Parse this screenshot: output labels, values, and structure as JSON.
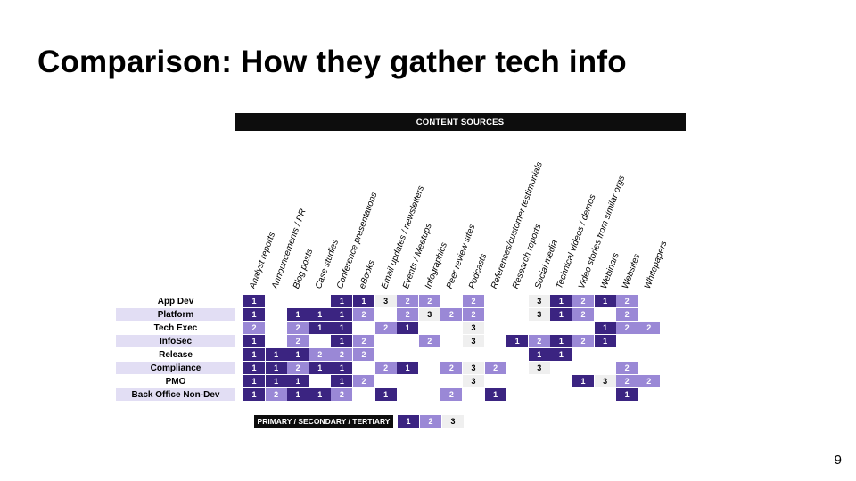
{
  "title": "Comparison: How they gather tech info",
  "page_number": "9",
  "figure": {
    "header": "CONTENT SOURCES",
    "columns": [
      "Analyst reports",
      "Announcements / PR",
      "Blog posts",
      "Case studies",
      "Conference presentations",
      "eBooks",
      "Email updates / newsletters",
      "Events / Meetups",
      "Infographics",
      "Peer review sites",
      "Podcasts",
      "References/customer testimonials",
      "Research reports",
      "Social media",
      "Technical videos / demos",
      "Video stories from similar orgs",
      "Webinars",
      "Websites",
      "Whitepapers"
    ],
    "rows": [
      {
        "label": "App Dev",
        "cells": [
          "1",
          "",
          "",
          "",
          "1",
          "1",
          "3",
          "2",
          "2",
          "",
          "2",
          "",
          "",
          "3",
          "1",
          "2",
          "1",
          "2",
          ""
        ]
      },
      {
        "label": "Platform",
        "cells": [
          "1",
          "",
          "1",
          "1",
          "1",
          "2",
          "",
          "2",
          "3",
          "2",
          "2",
          "",
          "",
          "3",
          "1",
          "2",
          "",
          "2",
          ""
        ]
      },
      {
        "label": "Tech Exec",
        "cells": [
          "2",
          "",
          "2",
          "1",
          "1",
          "",
          "2",
          "1",
          "",
          "",
          "3",
          "",
          "",
          "",
          "",
          "",
          "1",
          "2",
          "2"
        ]
      },
      {
        "label": "InfoSec",
        "cells": [
          "1",
          "",
          "2",
          "",
          "1",
          "2",
          "",
          "",
          "2",
          "",
          "3",
          "",
          "1",
          "2",
          "1",
          "2",
          "1",
          "",
          ""
        ]
      },
      {
        "label": "Release",
        "cells": [
          "1",
          "1",
          "1",
          "2",
          "2",
          "2",
          "",
          "",
          "",
          "",
          "",
          "",
          "",
          "1",
          "1",
          "",
          "",
          "",
          ""
        ]
      },
      {
        "label": "Compliance",
        "cells": [
          "1",
          "1",
          "2",
          "1",
          "1",
          "",
          "2",
          "1",
          "",
          "2",
          "3",
          "2",
          "",
          "3",
          "",
          "",
          "",
          "2",
          ""
        ]
      },
      {
        "label": "PMO",
        "cells": [
          "1",
          "1",
          "1",
          "",
          "1",
          "2",
          "",
          "",
          "",
          "",
          "3",
          "",
          "",
          "",
          "",
          "1",
          "3",
          "2",
          "2"
        ]
      },
      {
        "label": "Back Office Non-Dev",
        "cells": [
          "1",
          "2",
          "1",
          "1",
          "2",
          "",
          "1",
          "",
          "",
          "2",
          "",
          "1",
          "",
          "",
          "",
          "",
          "",
          "1",
          ""
        ]
      }
    ],
    "legend": {
      "label": "PRIMARY / SECONDARY / TERTIARY",
      "items": [
        "1",
        "2",
        "3"
      ]
    }
  },
  "colors": {
    "primary": "#3b2481",
    "secondary": "#9a88d6",
    "tertiary": "#efefef",
    "row_shade": "#e2def4",
    "header_bg": "#0d0d0d"
  }
}
